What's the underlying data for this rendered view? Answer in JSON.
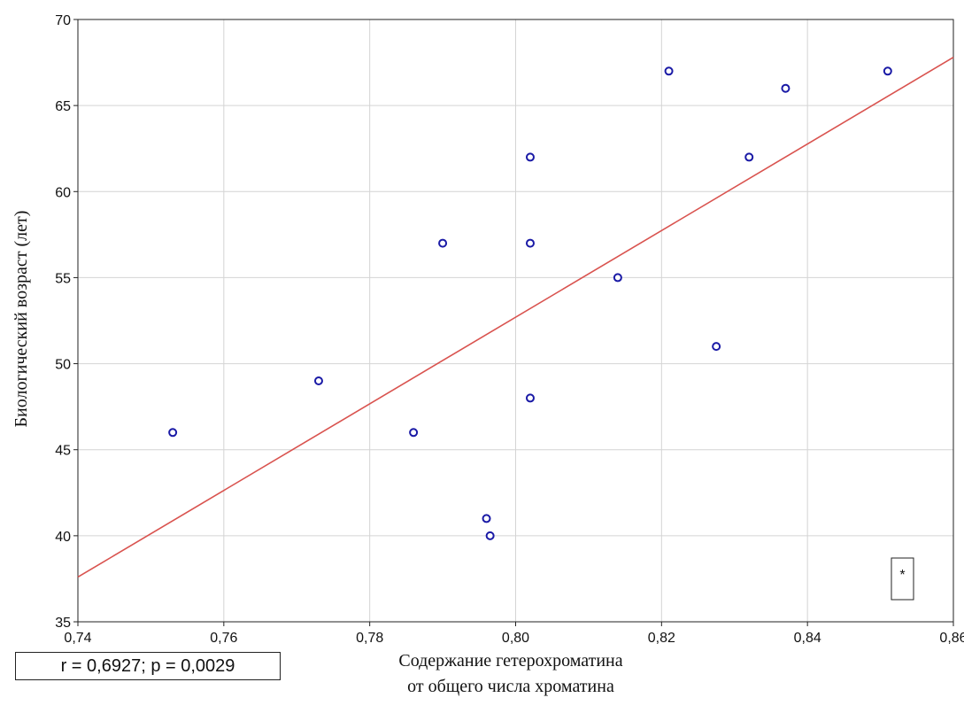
{
  "chart_data": {
    "type": "scatter",
    "xlabel_lines": [
      "Содержание гетерохроматина",
      "от общего числа хроматина"
    ],
    "ylabel": "Биологический возраст (лет)",
    "xlim": [
      0.74,
      0.86
    ],
    "ylim": [
      35,
      70
    ],
    "x_ticks": [
      0.74,
      0.76,
      0.78,
      0.8,
      0.82,
      0.84,
      0.86
    ],
    "x_tick_labels": [
      "0,74",
      "0,76",
      "0,78",
      "0,80",
      "0,82",
      "0,84",
      "0,86"
    ],
    "y_ticks": [
      35,
      40,
      45,
      50,
      55,
      60,
      65,
      70
    ],
    "y_tick_labels": [
      "35",
      "40",
      "45",
      "50",
      "55",
      "60",
      "65",
      "70"
    ],
    "grid": true,
    "points": [
      {
        "x": 0.753,
        "y": 46
      },
      {
        "x": 0.773,
        "y": 49
      },
      {
        "x": 0.786,
        "y": 46
      },
      {
        "x": 0.79,
        "y": 57
      },
      {
        "x": 0.796,
        "y": 41
      },
      {
        "x": 0.7965,
        "y": 40
      },
      {
        "x": 0.802,
        "y": 62
      },
      {
        "x": 0.802,
        "y": 57
      },
      {
        "x": 0.802,
        "y": 48
      },
      {
        "x": 0.814,
        "y": 55
      },
      {
        "x": 0.821,
        "y": 67
      },
      {
        "x": 0.8275,
        "y": 51
      },
      {
        "x": 0.832,
        "y": 62
      },
      {
        "x": 0.837,
        "y": 66
      },
      {
        "x": 0.851,
        "y": 67
      }
    ],
    "trend_line": {
      "x": [
        0.74,
        0.86
      ],
      "y": [
        37.6,
        67.8
      ]
    },
    "point_color": "#1a1aa6",
    "line_color": "#d9534f",
    "legend_marker": "*",
    "annotation": "r = 0,6927; p = 0,0029"
  }
}
